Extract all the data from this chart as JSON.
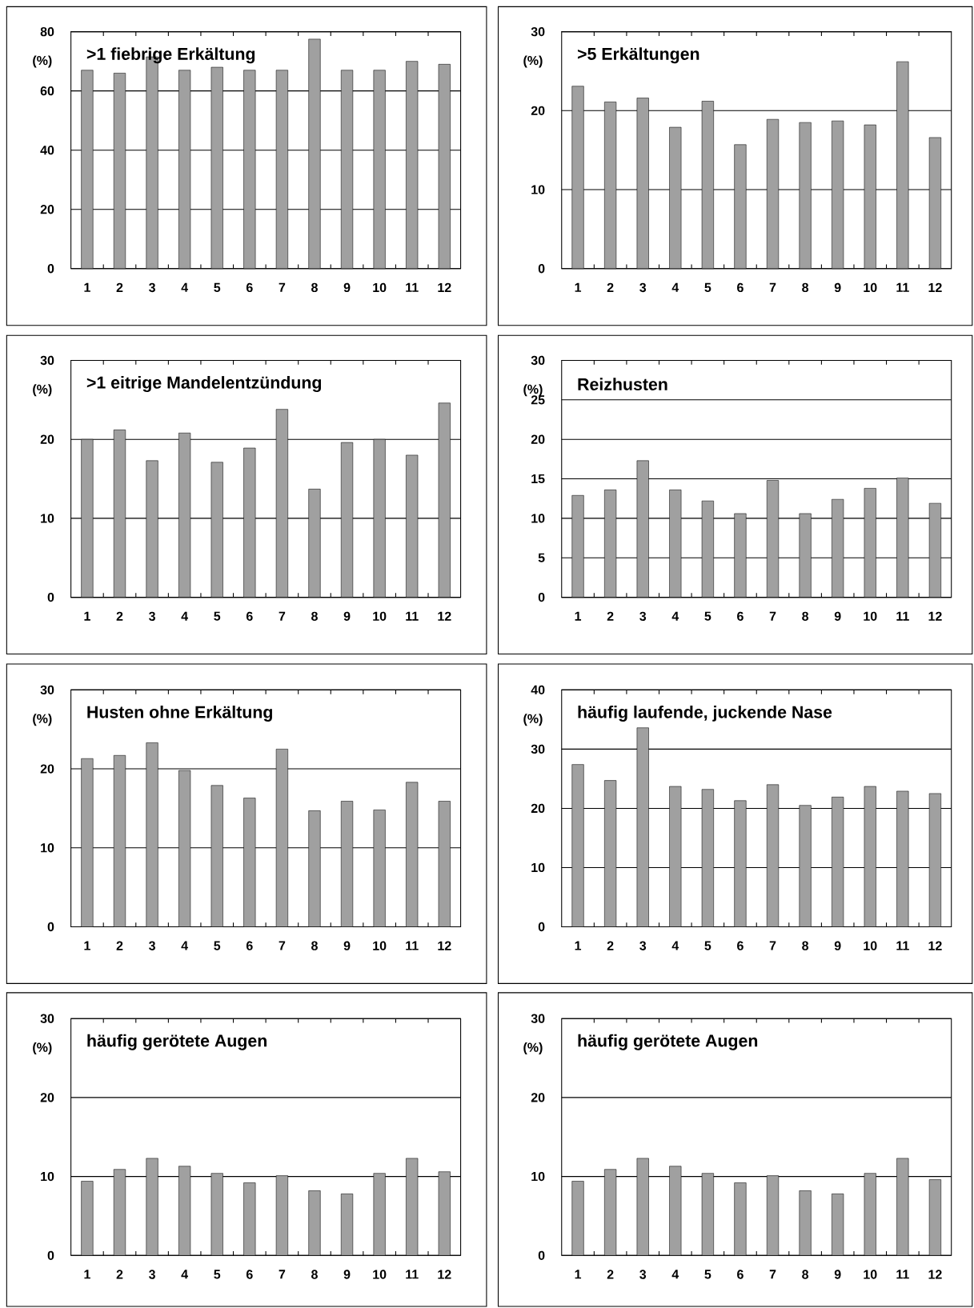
{
  "chart_data": [
    {
      "type": "bar",
      "title": ">1 fiebrige Erkältung",
      "ylabel": "(%)",
      "categories": [
        "1",
        "2",
        "3",
        "4",
        "5",
        "6",
        "7",
        "8",
        "9",
        "10",
        "11",
        "12"
      ],
      "values": [
        67,
        66,
        71.5,
        67,
        68,
        67,
        67,
        77.5,
        67,
        67,
        70,
        69
      ],
      "color": "#a0a0a0",
      "ylim": [
        0,
        80
      ],
      "yticks": [
        0,
        20,
        40,
        60,
        80
      ],
      "grid": "y"
    },
    {
      "type": "bar",
      "title": ">5 Erkältungen",
      "ylabel": "(%)",
      "categories": [
        "1",
        "2",
        "3",
        "4",
        "5",
        "6",
        "7",
        "8",
        "9",
        "10",
        "11",
        "12"
      ],
      "values": [
        23.1,
        21.1,
        21.6,
        17.9,
        21.2,
        15.7,
        18.9,
        18.5,
        18.7,
        18.2,
        26.2,
        16.6
      ],
      "color": "#a0a0a0",
      "ylim": [
        0,
        30
      ],
      "yticks": [
        0,
        10,
        20,
        30
      ],
      "grid": "y"
    },
    {
      "type": "bar",
      "title": ">1 eitrige Mandelentzündung",
      "ylabel": "(%)",
      "categories": [
        "1",
        "2",
        "3",
        "4",
        "5",
        "6",
        "7",
        "8",
        "9",
        "10",
        "11",
        "12"
      ],
      "values": [
        20,
        21.2,
        17.3,
        20.8,
        17.1,
        18.9,
        23.8,
        13.7,
        19.6,
        20,
        18,
        24.6
      ],
      "color": "#a0a0a0",
      "ylim": [
        0,
        30
      ],
      "yticks": [
        0,
        10,
        20,
        30
      ],
      "grid": "y"
    },
    {
      "type": "bar",
      "title": "Reizhusten",
      "ylabel": "(%)",
      "categories": [
        "1",
        "2",
        "3",
        "4",
        "5",
        "6",
        "7",
        "8",
        "9",
        "10",
        "11",
        "12"
      ],
      "values": [
        12.9,
        13.6,
        17.3,
        13.6,
        12.2,
        10.6,
        14.8,
        10.6,
        12.4,
        13.8,
        15.1,
        11.9
      ],
      "color": "#a0a0a0",
      "ylim": [
        0,
        30
      ],
      "yticks": [
        0,
        5,
        10,
        15,
        20,
        25,
        30
      ],
      "grid": "y"
    },
    {
      "type": "bar",
      "title": "Husten ohne Erkältung",
      "ylabel": "(%)",
      "categories": [
        "1",
        "2",
        "3",
        "4",
        "5",
        "6",
        "7",
        "8",
        "9",
        "10",
        "11",
        "12"
      ],
      "values": [
        21.3,
        21.7,
        23.3,
        19.8,
        17.9,
        16.3,
        22.5,
        14.7,
        15.9,
        14.8,
        18.3,
        15.9
      ],
      "color": "#a0a0a0",
      "ylim": [
        0,
        30
      ],
      "yticks": [
        0,
        10,
        20,
        30
      ],
      "grid": "y"
    },
    {
      "type": "bar",
      "title": "häufig laufende, juckende Nase",
      "ylabel": "(%)",
      "categories": [
        "1",
        "2",
        "3",
        "4",
        "5",
        "6",
        "7",
        "8",
        "9",
        "10",
        "11",
        "12"
      ],
      "values": [
        27.4,
        24.7,
        33.6,
        23.7,
        23.2,
        21.3,
        24,
        20.5,
        21.9,
        23.7,
        22.9,
        22.5
      ],
      "color": "#a0a0a0",
      "ylim": [
        0,
        40
      ],
      "yticks": [
        0,
        10,
        20,
        30,
        40
      ],
      "grid": "y"
    },
    {
      "type": "bar",
      "title": "häufig gerötete Augen",
      "ylabel": "(%)",
      "categories": [
        "1",
        "2",
        "3",
        "4",
        "5",
        "6",
        "7",
        "8",
        "9",
        "10",
        "11",
        "12"
      ],
      "values": [
        9.4,
        10.9,
        12.3,
        11.3,
        10.4,
        9.2,
        10.1,
        8.2,
        7.8,
        10.4,
        12.3,
        10.6
      ],
      "color": "#a0a0a0",
      "ylim": [
        0,
        30
      ],
      "yticks": [
        0,
        10,
        20,
        30
      ],
      "grid": "y"
    },
    {
      "type": "bar",
      "title": "häufig gerötete Augen",
      "ylabel": "(%)",
      "categories": [
        "1",
        "2",
        "3",
        "4",
        "5",
        "6",
        "7",
        "8",
        "9",
        "10",
        "11",
        "12"
      ],
      "values": [
        9.4,
        10.9,
        12.3,
        11.3,
        10.4,
        9.2,
        10.1,
        8.2,
        7.8,
        10.4,
        12.3,
        9.6
      ],
      "color": "#a0a0a0",
      "ylim": [
        0,
        30
      ],
      "yticks": [
        0,
        10,
        20,
        30
      ],
      "grid": "y"
    }
  ]
}
